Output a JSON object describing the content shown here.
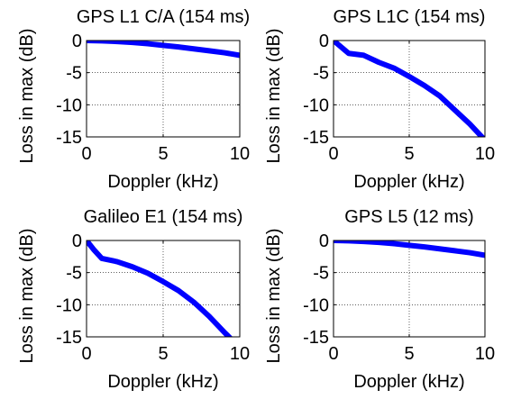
{
  "figure": {
    "background": "#ffffff",
    "line_color": "#0000ff",
    "grid_color": "#000000"
  },
  "chart_data": [
    {
      "type": "line",
      "title": "GPS L1 C/A (154 ms)",
      "xlabel": "Doppler (kHz)",
      "ylabel": "Loss in max (dB)",
      "xlim": [
        0,
        10
      ],
      "ylim": [
        -15,
        0
      ],
      "xticks": [
        "0",
        "5",
        "10"
      ],
      "yticks": [
        "0",
        "-5",
        "-10",
        "-15"
      ],
      "grid": true,
      "series": [
        {
          "x": [
            0,
            1,
            2,
            3,
            4,
            5,
            6,
            7,
            8,
            9,
            10
          ],
          "y": [
            0,
            -0.05,
            -0.15,
            -0.3,
            -0.5,
            -0.75,
            -1.0,
            -1.3,
            -1.6,
            -1.9,
            -2.3
          ]
        }
      ]
    },
    {
      "type": "line",
      "title": "GPS L1C (154 ms)",
      "xlabel": "Doppler (kHz)",
      "ylabel": "Loss in max (dB)",
      "xlim": [
        0,
        10
      ],
      "ylim": [
        -15,
        0
      ],
      "xticks": [
        "0",
        "5",
        "10"
      ],
      "yticks": [
        "0",
        "-5",
        "-10",
        "-15"
      ],
      "grid": true,
      "series": [
        {
          "x": [
            0,
            0.5,
            1,
            2,
            3,
            4,
            5,
            6,
            7,
            8,
            9,
            10
          ],
          "y": [
            0,
            -1.0,
            -2.0,
            -2.3,
            -3.4,
            -4.3,
            -5.6,
            -7.0,
            -8.6,
            -10.8,
            -13.0,
            -15.5
          ]
        }
      ]
    },
    {
      "type": "line",
      "title": "Galileo E1 (154 ms)",
      "xlabel": "Doppler (kHz)",
      "ylabel": "Loss in max (dB)",
      "xlim": [
        0,
        10
      ],
      "ylim": [
        -15,
        0
      ],
      "xticks": [
        "0",
        "5",
        "10"
      ],
      "yticks": [
        "0",
        "-5",
        "-10",
        "-15"
      ],
      "grid": true,
      "series": [
        {
          "x": [
            0,
            0.5,
            1,
            2,
            3,
            4,
            5,
            6,
            7,
            8,
            9,
            9.5
          ],
          "y": [
            0,
            -1.5,
            -2.8,
            -3.3,
            -4.1,
            -5.1,
            -6.4,
            -7.8,
            -9.6,
            -11.8,
            -14.3,
            -15.5
          ]
        }
      ]
    },
    {
      "type": "line",
      "title": "GPS L5 (12 ms)",
      "xlabel": "Doppler (kHz)",
      "ylabel": "Loss in max (dB)",
      "xlim": [
        0,
        10
      ],
      "ylim": [
        -15,
        0
      ],
      "xticks": [
        "0",
        "5",
        "10"
      ],
      "yticks": [
        "0",
        "-5",
        "-10",
        "-15"
      ],
      "grid": true,
      "series": [
        {
          "x": [
            0,
            1,
            2,
            3,
            4,
            5,
            6,
            7,
            8,
            9,
            10
          ],
          "y": [
            0,
            -0.05,
            -0.15,
            -0.3,
            -0.5,
            -0.75,
            -1.0,
            -1.3,
            -1.6,
            -1.9,
            -2.3
          ]
        }
      ]
    }
  ]
}
